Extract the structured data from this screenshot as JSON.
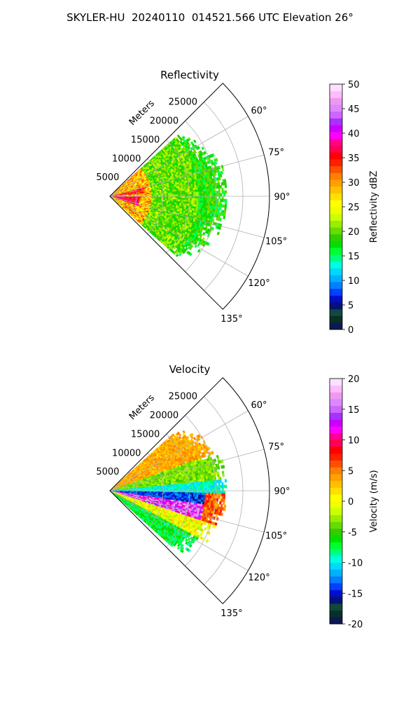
{
  "suptitle": "SKYLER-HU  20240110  014521.566 UTC Elevation 26°",
  "chart_data": [
    {
      "type": "heatmap",
      "projection": "polar-sector",
      "title": "Reflectivity",
      "radial_label": "Meters",
      "radial_ticks": [
        "5000",
        "10000",
        "15000",
        "20000",
        "25000"
      ],
      "rlim": [
        0,
        30000
      ],
      "angle_ticks": [
        "60°",
        "75°",
        "90°",
        "105°",
        "120°",
        "135°"
      ],
      "angle_range_deg": [
        45,
        135
      ],
      "grid": true,
      "colorbar": {
        "label": "Reflectivity dBZ",
        "range": [
          0,
          50
        ],
        "ticks": [
          "0",
          "5",
          "10",
          "15",
          "20",
          "25",
          "30",
          "35",
          "40",
          "45",
          "50"
        ],
        "colors": [
          "#0a1a50",
          "#0b2e2a",
          "#0d4a3a",
          "#08107a",
          "#0010c8",
          "#0040ff",
          "#0080ff",
          "#00b0ff",
          "#00d8ff",
          "#00ffe0",
          "#00ff80",
          "#00ff30",
          "#00e000",
          "#33cc00",
          "#66dd00",
          "#99ee00",
          "#ccff00",
          "#eeff00",
          "#ffff00",
          "#ffe000",
          "#ffc000",
          "#ffa000",
          "#ff8000",
          "#ff5000",
          "#ff2000",
          "#ff0000",
          "#ff0050",
          "#ff0090",
          "#ff00ff",
          "#cc00ff",
          "#aa30ff",
          "#cc66ff",
          "#dd88ff",
          "#ee99ee",
          "#ffbbff",
          "#ffe0ff"
        ]
      },
      "echo_extent_m": 22000,
      "echo_angle_range_deg": [
        48,
        132
      ]
    },
    {
      "type": "heatmap",
      "projection": "polar-sector",
      "title": "Velocity",
      "radial_label": "Meters",
      "radial_ticks": [
        "5000",
        "10000",
        "15000",
        "20000",
        "25000"
      ],
      "rlim": [
        0,
        30000
      ],
      "angle_ticks": [
        "60°",
        "75°",
        "90°",
        "105°",
        "120°",
        "135°"
      ],
      "angle_range_deg": [
        45,
        135
      ],
      "grid": true,
      "colorbar": {
        "label": "Velocity (m/s)",
        "range": [
          -20,
          20
        ],
        "ticks": [
          "-20",
          "-15",
          "-10",
          "-5",
          "0",
          "5",
          "10",
          "15",
          "20"
        ],
        "colors": [
          "#0a1a50",
          "#0b2e2a",
          "#0d4a3a",
          "#08107a",
          "#0010c8",
          "#0040ff",
          "#0080ff",
          "#00b0ff",
          "#00d8ff",
          "#00ffe0",
          "#00ff80",
          "#00ff30",
          "#00e000",
          "#33cc00",
          "#66dd00",
          "#99ee00",
          "#ccff00",
          "#eeff00",
          "#ffff00",
          "#ffe000",
          "#ffc000",
          "#ffa000",
          "#ff8000",
          "#ff5000",
          "#ff2000",
          "#ff0000",
          "#ff0050",
          "#ff0090",
          "#ff00ff",
          "#cc00ff",
          "#aa30ff",
          "#cc66ff",
          "#dd88ff",
          "#ee99ee",
          "#ffbbff",
          "#ffe0ff"
        ]
      },
      "echo_extent_m": 22000,
      "echo_angle_range_deg": [
        48,
        132
      ]
    }
  ]
}
